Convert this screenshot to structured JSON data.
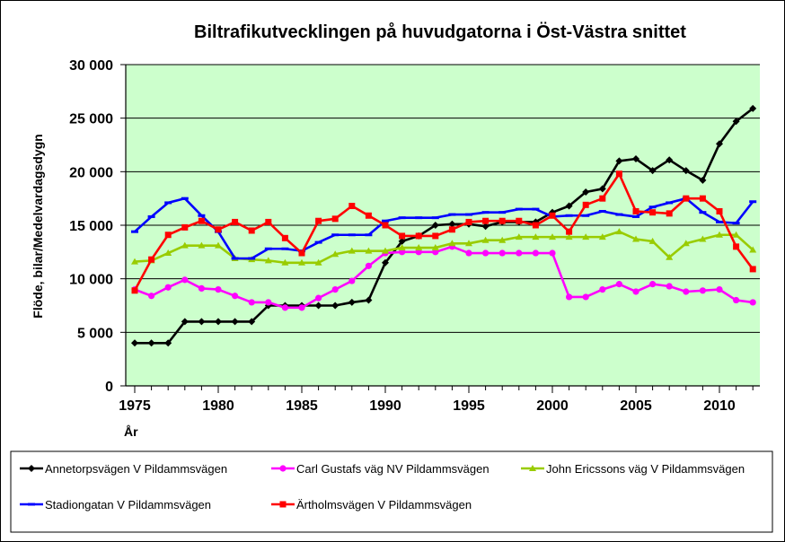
{
  "chart_data": {
    "type": "line",
    "title": "Biltrafikutvecklingen på huvudgatorna i Öst-Västra snittet",
    "xlabel": "År",
    "ylabel": "Flöde, bilar/Medelvardagsdygn",
    "xlim": [
      1975,
      2012
    ],
    "ylim": [
      0,
      30000
    ],
    "x_ticks": [
      "1975",
      "1980",
      "1985",
      "1990",
      "1995",
      "2000",
      "2005",
      "2010"
    ],
    "x_tick_values": [
      1975,
      1980,
      1985,
      1990,
      1995,
      2000,
      2005,
      2010
    ],
    "y_ticks": [
      "0",
      "5 000",
      "10 000",
      "15 000",
      "20 000",
      "25 000",
      "30 000"
    ],
    "y_tick_values": [
      0,
      5000,
      10000,
      15000,
      20000,
      25000,
      30000
    ],
    "grid": "horizontal",
    "legend_position": "bottom",
    "plot_background": "#ccffcc",
    "x": [
      1975,
      1976,
      1977,
      1978,
      1979,
      1980,
      1981,
      1982,
      1983,
      1984,
      1985,
      1986,
      1987,
      1988,
      1989,
      1990,
      1991,
      1992,
      1993,
      1994,
      1995,
      1996,
      1997,
      1998,
      1999,
      2000,
      2001,
      2002,
      2003,
      2004,
      2005,
      2006,
      2007,
      2008,
      2009,
      2010,
      2011,
      2012
    ],
    "series": [
      {
        "name": "Annetorpsvägen V Pildammsvägen",
        "color": "#000000",
        "marker": "diamond",
        "values": [
          4000,
          4000,
          4000,
          6000,
          6000,
          6000,
          6000,
          6000,
          7500,
          7500,
          7500,
          7500,
          7500,
          7800,
          8000,
          11500,
          13500,
          14000,
          15000,
          15100,
          15100,
          14900,
          15300,
          15300,
          15300,
          16200,
          16800,
          18100,
          18400,
          21000,
          21200,
          20100,
          21100,
          20100,
          19200,
          22600,
          24700,
          25900
        ]
      },
      {
        "name": "Carl Gustafs väg NV Pildammsvägen",
        "color": "#ff00ff",
        "marker": "circle",
        "values": [
          9000,
          8400,
          9200,
          9900,
          9100,
          9000,
          8400,
          7800,
          7800,
          7300,
          7300,
          8200,
          9000,
          9800,
          11200,
          12400,
          12500,
          12500,
          12500,
          13000,
          12400,
          12400,
          12400,
          12400,
          12400,
          12400,
          8300,
          8300,
          9000,
          9500,
          8800,
          9500,
          9300,
          8800,
          8900,
          9000,
          8000,
          7800
        ]
      },
      {
        "name": "John Ericssons väg V Pildammsvägen",
        "color": "#99cc00",
        "marker": "triangle",
        "values": [
          11600,
          11700,
          12400,
          13100,
          13100,
          13100,
          11900,
          11800,
          11700,
          11500,
          11500,
          11500,
          12300,
          12600,
          12600,
          12600,
          12900,
          12900,
          12900,
          13300,
          13300,
          13600,
          13600,
          13900,
          13900,
          13900,
          13900,
          13900,
          13900,
          14400,
          13700,
          13500,
          12000,
          13300,
          13700,
          14100,
          14100,
          12700
        ]
      },
      {
        "name": "Stadiongatan V Pildammsvägen",
        "color": "#0000ff",
        "marker": "dash",
        "values": [
          14400,
          15800,
          17100,
          17500,
          15900,
          14400,
          11900,
          11900,
          12800,
          12800,
          12600,
          13400,
          14100,
          14100,
          14100,
          15400,
          15700,
          15700,
          15700,
          16000,
          16000,
          16200,
          16200,
          16500,
          16500,
          15800,
          15900,
          15900,
          16300,
          16000,
          15800,
          16700,
          17100,
          17500,
          16200,
          15300,
          15200,
          17200
        ]
      },
      {
        "name": "Ärtholmsvägen V Pildammsvägen",
        "color": "#ff0000",
        "marker": "square",
        "values": [
          8900,
          11800,
          14100,
          14800,
          15400,
          14600,
          15300,
          14500,
          15300,
          13800,
          12400,
          15400,
          15600,
          16800,
          15900,
          15000,
          14000,
          14000,
          14000,
          14600,
          15300,
          15400,
          15400,
          15400,
          15000,
          15900,
          14400,
          16900,
          17500,
          19800,
          16300,
          16200,
          16100,
          17500,
          17500,
          16300,
          13000,
          10900
        ]
      }
    ]
  }
}
